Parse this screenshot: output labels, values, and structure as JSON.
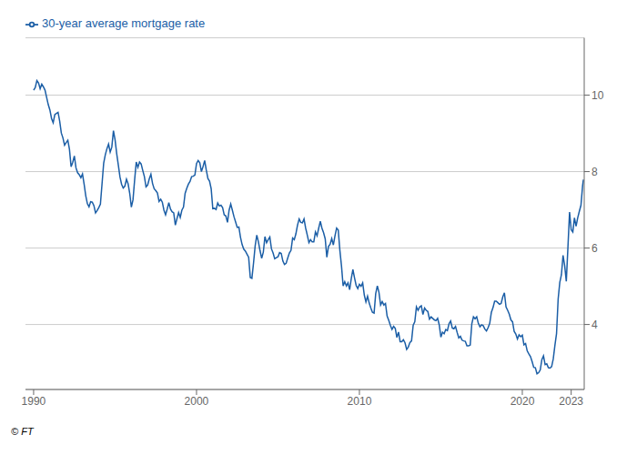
{
  "chart_data": {
    "type": "line",
    "annotations": [
      "© FT"
    ],
    "legend": "upper left",
    "grid": true,
    "xlim": [
      1989.5,
      2023.8
    ],
    "xticks": [
      1990,
      2000,
      2010,
      2020,
      2023
    ],
    "ylim": [
      2.3,
      11.5
    ],
    "yticks": [
      4,
      6,
      8,
      10
    ],
    "x": [
      1990.0,
      1990.1,
      1990.2,
      1990.3,
      1990.4,
      1990.5,
      1990.6,
      1990.7,
      1990.8,
      1990.9,
      1991.0,
      1991.1,
      1991.2,
      1991.3,
      1991.4,
      1991.5,
      1991.6,
      1991.7,
      1991.8,
      1991.9,
      1992.0,
      1992.1,
      1992.2,
      1992.3,
      1992.4,
      1992.5,
      1992.6,
      1992.7,
      1992.8,
      1992.9,
      1993.0,
      1993.1,
      1993.2,
      1993.3,
      1993.4,
      1993.5,
      1993.6,
      1993.7,
      1993.8,
      1993.9,
      1994.0,
      1994.1,
      1994.2,
      1994.3,
      1994.4,
      1994.5,
      1994.6,
      1994.7,
      1994.8,
      1994.9,
      1995.0,
      1995.1,
      1995.2,
      1995.3,
      1995.4,
      1995.5,
      1995.6,
      1995.7,
      1995.8,
      1995.9,
      1996.0,
      1996.1,
      1996.2,
      1996.3,
      1996.4,
      1996.5,
      1996.6,
      1996.7,
      1996.8,
      1996.9,
      1997.0,
      1997.1,
      1997.2,
      1997.3,
      1997.4,
      1997.5,
      1997.6,
      1997.7,
      1997.8,
      1997.9,
      1998.0,
      1998.1,
      1998.2,
      1998.3,
      1998.4,
      1998.5,
      1998.6,
      1998.7,
      1998.8,
      1998.9,
      1999.0,
      1999.1,
      1999.2,
      1999.3,
      1999.4,
      1999.5,
      1999.6,
      1999.7,
      1999.8,
      1999.9,
      2000.0,
      2000.1,
      2000.2,
      2000.3,
      2000.4,
      2000.5,
      2000.6,
      2000.7,
      2000.8,
      2000.9,
      2001.0,
      2001.1,
      2001.2,
      2001.3,
      2001.4,
      2001.5,
      2001.6,
      2001.7,
      2001.8,
      2001.9,
      2002.0,
      2002.1,
      2002.2,
      2002.3,
      2002.4,
      2002.5,
      2002.6,
      2002.7,
      2002.8,
      2002.9,
      2003.0,
      2003.1,
      2003.2,
      2003.3,
      2003.4,
      2003.5,
      2003.6,
      2003.7,
      2003.8,
      2003.9,
      2004.0,
      2004.1,
      2004.2,
      2004.3,
      2004.4,
      2004.5,
      2004.6,
      2004.7,
      2004.8,
      2004.9,
      2005.0,
      2005.1,
      2005.2,
      2005.3,
      2005.4,
      2005.5,
      2005.6,
      2005.7,
      2005.8,
      2005.9,
      2006.0,
      2006.1,
      2006.2,
      2006.3,
      2006.4,
      2006.5,
      2006.6,
      2006.7,
      2006.8,
      2006.9,
      2007.0,
      2007.1,
      2007.2,
      2007.3,
      2007.4,
      2007.5,
      2007.6,
      2007.7,
      2007.8,
      2007.9,
      2008.0,
      2008.1,
      2008.2,
      2008.3,
      2008.4,
      2008.5,
      2008.6,
      2008.7,
      2008.8,
      2008.9,
      2009.0,
      2009.1,
      2009.2,
      2009.3,
      2009.4,
      2009.5,
      2009.6,
      2009.7,
      2009.8,
      2009.9,
      2010.0,
      2010.1,
      2010.2,
      2010.3,
      2010.4,
      2010.5,
      2010.6,
      2010.7,
      2010.8,
      2010.9,
      2011.0,
      2011.1,
      2011.2,
      2011.3,
      2011.4,
      2011.5,
      2011.6,
      2011.7,
      2011.8,
      2011.9,
      2012.0,
      2012.1,
      2012.2,
      2012.3,
      2012.4,
      2012.5,
      2012.6,
      2012.7,
      2012.8,
      2012.9,
      2013.0,
      2013.1,
      2013.2,
      2013.3,
      2013.4,
      2013.5,
      2013.6,
      2013.7,
      2013.8,
      2013.9,
      2014.0,
      2014.1,
      2014.2,
      2014.3,
      2014.4,
      2014.5,
      2014.6,
      2014.7,
      2014.8,
      2014.9,
      2015.0,
      2015.1,
      2015.2,
      2015.3,
      2015.4,
      2015.5,
      2015.6,
      2015.7,
      2015.8,
      2015.9,
      2016.0,
      2016.1,
      2016.2,
      2016.3,
      2016.4,
      2016.5,
      2016.6,
      2016.7,
      2016.8,
      2016.9,
      2017.0,
      2017.1,
      2017.2,
      2017.3,
      2017.4,
      2017.5,
      2017.6,
      2017.7,
      2017.8,
      2017.9,
      2018.0,
      2018.1,
      2018.2,
      2018.3,
      2018.4,
      2018.5,
      2018.6,
      2018.7,
      2018.8,
      2018.9,
      2019.0,
      2019.1,
      2019.2,
      2019.3,
      2019.4,
      2019.5,
      2019.6,
      2019.7,
      2019.8,
      2019.9,
      2020.0,
      2020.1,
      2020.2,
      2020.3,
      2020.4,
      2020.5,
      2020.6,
      2020.7,
      2020.8,
      2020.9,
      2021.0,
      2021.1,
      2021.2,
      2021.3,
      2021.4,
      2021.5,
      2021.6,
      2021.7,
      2021.8,
      2021.9,
      2022.0,
      2022.1,
      2022.2,
      2022.3,
      2022.4,
      2022.5,
      2022.6,
      2022.7,
      2022.8,
      2022.9,
      2023.0,
      2023.1,
      2023.2,
      2023.3,
      2023.4,
      2023.5,
      2023.6,
      2023.7,
      2023.75
    ],
    "series": [
      {
        "name": "30-year average mortgage rate",
        "color": "#1b5ea6",
        "values": [
          10.13,
          10.2,
          10.38,
          10.32,
          10.17,
          10.29,
          10.22,
          10.13,
          9.94,
          9.75,
          9.61,
          9.39,
          9.28,
          9.49,
          9.52,
          9.55,
          9.32,
          9.01,
          8.88,
          8.69,
          8.76,
          8.82,
          8.58,
          8.13,
          8.24,
          8.41,
          8.1,
          7.97,
          7.92,
          7.84,
          7.94,
          7.67,
          7.37,
          7.16,
          7.08,
          7.21,
          7.2,
          7.11,
          6.92,
          6.98,
          7.06,
          7.15,
          7.68,
          8.22,
          8.44,
          8.6,
          8.72,
          8.51,
          8.64,
          9.07,
          8.83,
          8.47,
          8.17,
          7.86,
          7.67,
          7.57,
          7.62,
          7.8,
          7.68,
          7.43,
          7.07,
          7.26,
          7.78,
          8.25,
          8.11,
          8.25,
          8.2,
          8.03,
          7.87,
          7.6,
          7.65,
          7.81,
          7.93,
          7.69,
          7.55,
          7.5,
          7.44,
          7.22,
          7.28,
          7.2,
          6.99,
          6.87,
          7.02,
          7.19,
          7.02,
          6.95,
          6.92,
          6.6,
          6.77,
          6.93,
          6.8,
          6.99,
          7.07,
          7.43,
          7.56,
          7.67,
          7.74,
          7.87,
          7.88,
          7.91,
          8.21,
          8.29,
          8.23,
          8.0,
          8.13,
          8.29,
          8.04,
          7.82,
          7.75,
          7.55,
          7.03,
          7.04,
          7.01,
          7.18,
          7.1,
          7.12,
          7.06,
          6.87,
          6.84,
          6.67,
          6.99,
          7.15,
          6.99,
          6.82,
          6.68,
          6.54,
          6.55,
          6.28,
          6.09,
          5.97,
          5.92,
          5.84,
          5.76,
          5.23,
          5.21,
          5.61,
          6.06,
          6.34,
          6.16,
          5.93,
          5.73,
          5.89,
          6.3,
          6.14,
          6.22,
          6.29,
          5.98,
          5.87,
          5.72,
          5.75,
          5.77,
          5.88,
          5.86,
          5.66,
          5.57,
          5.6,
          5.74,
          5.87,
          5.94,
          6.26,
          6.22,
          6.37,
          6.6,
          6.76,
          6.67,
          6.66,
          6.76,
          6.52,
          6.34,
          6.14,
          6.22,
          6.16,
          6.16,
          6.42,
          6.32,
          6.52,
          6.7,
          6.52,
          6.4,
          6.24,
          5.76,
          6.04,
          6.1,
          6.25,
          6.08,
          6.32,
          6.52,
          6.47,
          5.94,
          5.53,
          5.01,
          5.12,
          5.01,
          5.09,
          4.91,
          5.2,
          5.44,
          5.22,
          5.02,
          4.94,
          5.05,
          5.0,
          5.09,
          4.77,
          4.59,
          4.74,
          4.56,
          4.43,
          4.32,
          4.3,
          4.81,
          5.01,
          4.84,
          4.51,
          4.6,
          4.51,
          4.55,
          4.22,
          4.11,
          3.98,
          3.87,
          3.95,
          3.9,
          3.66,
          3.8,
          3.55,
          3.55,
          3.6,
          3.52,
          3.35,
          3.41,
          3.53,
          3.57,
          3.98,
          4.07,
          4.46,
          4.37,
          4.46,
          4.49,
          4.26,
          4.43,
          4.37,
          4.34,
          4.14,
          4.2,
          4.16,
          4.12,
          4.1,
          4.16,
          3.99,
          3.67,
          3.8,
          3.76,
          3.87,
          3.84,
          4.02,
          4.09,
          3.91,
          3.89,
          3.95,
          3.79,
          3.65,
          3.69,
          3.59,
          3.57,
          3.56,
          3.44,
          3.44,
          3.46,
          4.02,
          4.2,
          4.15,
          4.2,
          4.03,
          3.94,
          3.99,
          3.97,
          3.88,
          3.83,
          3.92,
          4.03,
          4.32,
          4.44,
          4.61,
          4.61,
          4.57,
          4.53,
          4.55,
          4.72,
          4.83,
          4.46,
          4.37,
          4.27,
          4.12,
          4.07,
          3.82,
          3.75,
          3.62,
          3.73,
          3.68,
          3.72,
          3.47,
          3.5,
          3.31,
          3.23,
          3.16,
          3.03,
          2.88,
          2.87,
          2.71,
          2.74,
          2.81,
          3.08,
          3.18,
          2.95,
          2.97,
          2.87,
          2.86,
          2.9,
          3.1,
          3.45,
          3.76,
          4.67,
          5.1,
          5.3,
          5.81,
          5.54,
          5.13,
          6.02,
          6.94,
          6.48,
          6.42,
          6.79,
          6.57,
          6.79,
          6.96,
          7.12,
          7.63,
          7.79
        ]
      }
    ]
  }
}
